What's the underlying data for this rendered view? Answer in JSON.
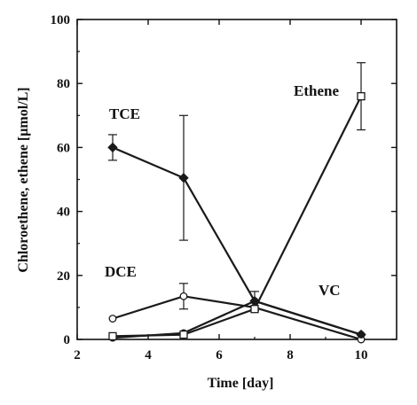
{
  "chart_data": {
    "type": "line",
    "title": "",
    "xlabel": "Time [day]",
    "ylabel": "Chloroethene, ethene [μmol/L]",
    "xlim": [
      2,
      11
    ],
    "ylim": [
      0,
      100
    ],
    "xticks": [
      2,
      4,
      6,
      8,
      10
    ],
    "yticks": [
      0,
      20,
      40,
      60,
      80,
      100
    ],
    "grid": false,
    "legend": "labels placed next to each series",
    "x": [
      3,
      5,
      7,
      10
    ],
    "series": [
      {
        "name": "TCE",
        "marker": "filled-diamond",
        "values": [
          60,
          50.5,
          12,
          1.5
        ],
        "error": [
          4,
          19.5,
          0,
          0
        ]
      },
      {
        "name": "DCE",
        "marker": "open-circle",
        "values": [
          6.5,
          13.5,
          10,
          0
        ],
        "error": [
          0,
          4,
          0,
          0
        ]
      },
      {
        "name": "VC",
        "marker": "filled-circle",
        "values": [
          0.5,
          2,
          12,
          1.5
        ],
        "error": [
          0,
          0,
          3,
          0
        ]
      },
      {
        "name": "Ethene",
        "marker": "open-square",
        "values": [
          1,
          1.5,
          9.5,
          76
        ],
        "error": [
          0,
          0,
          0,
          10.5
        ]
      }
    ],
    "line_color": "#1a1a1a"
  }
}
